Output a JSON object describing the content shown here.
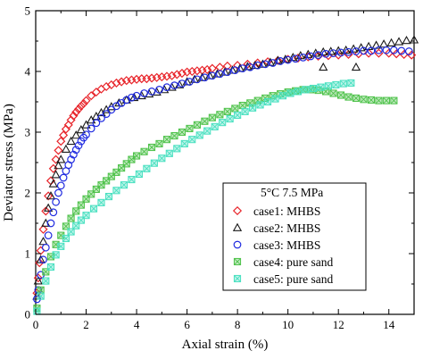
{
  "chart_data": {
    "type": "scatter",
    "xlabel": "Axial strain (%)",
    "ylabel": "Deviator stress (MPa)",
    "xlim": [
      0,
      15
    ],
    "ylim": [
      0,
      5
    ],
    "xticks": [
      0,
      2,
      4,
      6,
      8,
      10,
      12,
      14
    ],
    "yticks": [
      0,
      1,
      2,
      3,
      4,
      5
    ],
    "grid": false,
    "legend": {
      "placement": "bottom-right",
      "header": "5°C   7.5 MPa",
      "entries": [
        "case1: MHBS",
        "case2: MHBS",
        "case3: MHBS",
        "case4: pure sand",
        "case5: pure sand"
      ]
    },
    "series": [
      {
        "name": "case1: MHBS",
        "marker": "diamond",
        "color": "#e8242a",
        "x": [
          0.05,
          0.1,
          0.15,
          0.2,
          0.3,
          0.4,
          0.5,
          0.6,
          0.7,
          0.8,
          0.9,
          1.0,
          1.1,
          1.2,
          1.3,
          1.4,
          1.5,
          1.6,
          1.7,
          1.8,
          1.9,
          2.0,
          2.2,
          2.4,
          2.6,
          2.8,
          3.0,
          3.2,
          3.4,
          3.6,
          3.8,
          4.0,
          4.2,
          4.4,
          4.6,
          4.8,
          5.0,
          5.2,
          5.4,
          5.6,
          5.8,
          6.0,
          6.2,
          6.4,
          6.6,
          6.8,
          7.0,
          7.3,
          7.6,
          8.0,
          8.4,
          8.8,
          9.2,
          9.6,
          10.0,
          10.4,
          10.8,
          11.2,
          11.6,
          12.0,
          12.4,
          12.8,
          13.2,
          13.6,
          14.0,
          14.3,
          14.6,
          14.9
        ],
        "y": [
          0.35,
          0.6,
          0.85,
          1.05,
          1.4,
          1.7,
          1.95,
          2.2,
          2.4,
          2.55,
          2.7,
          2.85,
          2.95,
          3.05,
          3.12,
          3.2,
          3.27,
          3.33,
          3.38,
          3.43,
          3.47,
          3.52,
          3.6,
          3.66,
          3.71,
          3.75,
          3.78,
          3.81,
          3.83,
          3.85,
          3.86,
          3.87,
          3.88,
          3.88,
          3.89,
          3.9,
          3.91,
          3.92,
          3.93,
          3.95,
          3.97,
          3.99,
          4.0,
          4.01,
          4.02,
          4.03,
          4.05,
          4.07,
          4.09,
          4.1,
          4.12,
          4.14,
          4.16,
          4.18,
          4.2,
          4.22,
          4.24,
          4.25,
          4.26,
          4.27,
          4.28,
          4.29,
          4.3,
          4.3,
          4.3,
          4.29,
          4.28,
          4.27
        ]
      },
      {
        "name": "case2: MHBS",
        "marker": "triangle",
        "color": "#1a1a1a",
        "x": [
          0.05,
          0.1,
          0.2,
          0.3,
          0.4,
          0.5,
          0.6,
          0.7,
          0.8,
          0.9,
          1.0,
          1.2,
          1.4,
          1.6,
          1.8,
          2.0,
          2.2,
          2.4,
          2.6,
          2.8,
          3.0,
          3.3,
          3.6,
          3.9,
          4.2,
          4.5,
          4.8,
          5.1,
          5.4,
          5.7,
          6.0,
          6.3,
          6.6,
          6.9,
          7.2,
          7.5,
          7.8,
          8.1,
          8.4,
          8.7,
          9.0,
          9.3,
          9.6,
          9.9,
          10.2,
          10.5,
          10.8,
          11.1,
          11.4,
          11.7,
          12.0,
          12.3,
          12.6,
          12.9,
          13.2,
          13.5,
          13.8,
          14.1,
          14.4,
          14.7,
          15.0,
          11.4,
          12.7
        ],
        "y": [
          0.3,
          0.55,
          0.9,
          1.2,
          1.5,
          1.75,
          1.95,
          2.15,
          2.3,
          2.45,
          2.55,
          2.72,
          2.85,
          2.95,
          3.04,
          3.12,
          3.2,
          3.26,
          3.32,
          3.37,
          3.42,
          3.48,
          3.53,
          3.57,
          3.6,
          3.63,
          3.66,
          3.7,
          3.74,
          3.78,
          3.83,
          3.87,
          3.9,
          3.93,
          3.96,
          3.99,
          4.02,
          4.05,
          4.08,
          4.1,
          4.12,
          4.15,
          4.18,
          4.2,
          4.23,
          4.26,
          4.28,
          4.3,
          4.32,
          4.33,
          4.34,
          4.35,
          4.37,
          4.39,
          4.41,
          4.43,
          4.45,
          4.47,
          4.49,
          4.51,
          4.52,
          4.07,
          4.07
        ]
      },
      {
        "name": "case3: MHBS",
        "marker": "circle",
        "color": "#1f2ae0",
        "x": [
          0.05,
          0.1,
          0.2,
          0.3,
          0.4,
          0.5,
          0.6,
          0.7,
          0.8,
          0.9,
          1.0,
          1.1,
          1.2,
          1.3,
          1.4,
          1.5,
          1.6,
          1.7,
          1.8,
          1.9,
          2.0,
          2.2,
          2.4,
          2.6,
          2.8,
          3.0,
          3.2,
          3.4,
          3.6,
          3.8,
          4.0,
          4.3,
          4.6,
          4.9,
          5.2,
          5.5,
          5.8,
          6.1,
          6.4,
          6.7,
          7.0,
          7.3,
          7.6,
          7.9,
          8.2,
          8.5,
          8.8,
          9.1,
          9.4,
          9.7,
          10.0,
          10.3,
          10.6,
          10.9,
          11.2,
          11.5,
          11.8,
          12.1,
          12.4,
          12.7,
          13.0,
          13.3,
          13.6,
          13.9,
          14.2,
          14.5,
          14.8
        ],
        "y": [
          0.25,
          0.4,
          0.65,
          0.9,
          1.1,
          1.3,
          1.5,
          1.68,
          1.85,
          2.0,
          2.12,
          2.25,
          2.36,
          2.46,
          2.55,
          2.63,
          2.71,
          2.78,
          2.85,
          2.91,
          2.96,
          3.06,
          3.15,
          3.23,
          3.3,
          3.37,
          3.43,
          3.48,
          3.53,
          3.57,
          3.6,
          3.64,
          3.67,
          3.7,
          3.74,
          3.77,
          3.8,
          3.83,
          3.87,
          3.9,
          3.93,
          3.96,
          3.99,
          4.02,
          4.05,
          4.07,
          4.1,
          4.12,
          4.14,
          4.17,
          4.19,
          4.21,
          4.23,
          4.25,
          4.27,
          4.29,
          4.3,
          4.31,
          4.32,
          4.33,
          4.34,
          4.34,
          4.35,
          4.35,
          4.35,
          4.34,
          4.33
        ]
      },
      {
        "name": "case4: pure sand",
        "marker": "square-cross",
        "color": "#4ec24a",
        "x": [
          0.05,
          0.2,
          0.4,
          0.6,
          0.8,
          1.0,
          1.2,
          1.4,
          1.6,
          1.8,
          2.0,
          2.2,
          2.4,
          2.6,
          2.8,
          3.0,
          3.2,
          3.4,
          3.6,
          3.8,
          4.0,
          4.3,
          4.6,
          4.9,
          5.2,
          5.5,
          5.8,
          6.1,
          6.4,
          6.7,
          7.0,
          7.3,
          7.6,
          7.9,
          8.2,
          8.5,
          8.8,
          9.1,
          9.4,
          9.7,
          10.0,
          10.3,
          10.6,
          10.9,
          11.2,
          11.5,
          11.8,
          12.1,
          12.4,
          12.7,
          13.0,
          13.3,
          13.6,
          13.9,
          14.2
        ],
        "y": [
          0.1,
          0.4,
          0.7,
          0.95,
          1.15,
          1.3,
          1.45,
          1.58,
          1.7,
          1.8,
          1.9,
          1.98,
          2.06,
          2.13,
          2.2,
          2.27,
          2.34,
          2.41,
          2.48,
          2.55,
          2.61,
          2.68,
          2.75,
          2.81,
          2.88,
          2.94,
          3.0,
          3.06,
          3.12,
          3.18,
          3.24,
          3.29,
          3.34,
          3.39,
          3.44,
          3.48,
          3.52,
          3.56,
          3.6,
          3.63,
          3.66,
          3.68,
          3.7,
          3.7,
          3.69,
          3.67,
          3.64,
          3.61,
          3.58,
          3.56,
          3.54,
          3.53,
          3.52,
          3.52,
          3.52
        ]
      },
      {
        "name": "case5: pure sand",
        "marker": "square-cross",
        "color": "#48e0c0",
        "x": [
          0.05,
          0.2,
          0.4,
          0.6,
          0.8,
          1.0,
          1.2,
          1.4,
          1.6,
          1.8,
          2.0,
          2.3,
          2.6,
          2.9,
          3.2,
          3.5,
          3.8,
          4.1,
          4.4,
          4.7,
          5.0,
          5.3,
          5.6,
          5.9,
          6.2,
          6.5,
          6.8,
          7.1,
          7.4,
          7.7,
          8.0,
          8.3,
          8.6,
          8.9,
          9.2,
          9.5,
          9.8,
          10.1,
          10.4,
          10.7,
          11.0,
          11.3,
          11.6,
          11.9,
          12.2,
          12.5
        ],
        "y": [
          0.05,
          0.3,
          0.55,
          0.78,
          0.98,
          1.12,
          1.25,
          1.36,
          1.46,
          1.55,
          1.63,
          1.74,
          1.84,
          1.94,
          2.04,
          2.13,
          2.22,
          2.31,
          2.4,
          2.49,
          2.57,
          2.65,
          2.73,
          2.81,
          2.88,
          2.95,
          3.02,
          3.09,
          3.16,
          3.22,
          3.28,
          3.34,
          3.4,
          3.45,
          3.5,
          3.55,
          3.6,
          3.64,
          3.67,
          3.7,
          3.72,
          3.74,
          3.76,
          3.78,
          3.8,
          3.81
        ]
      }
    ]
  }
}
